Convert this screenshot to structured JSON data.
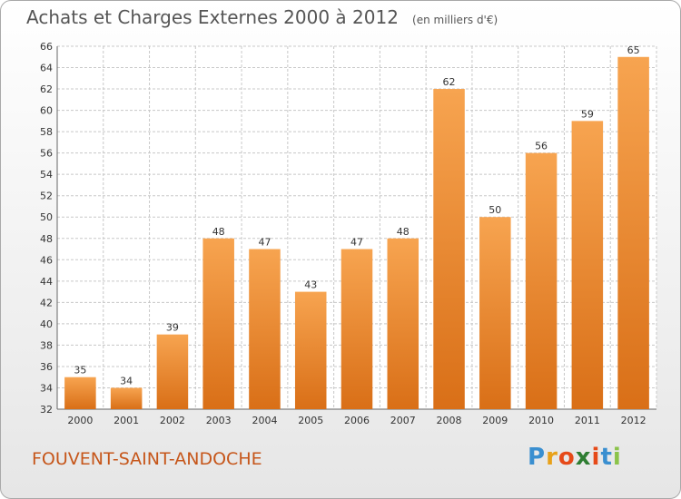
{
  "title": "Achats et Charges Externes 2000 à 2012",
  "unit": "(en milliers d'€)",
  "commune": "FOUVENT-SAINT-ANDOCHE",
  "logo": {
    "letters": [
      "P",
      "r",
      "o",
      "x",
      "i",
      "t",
      "i"
    ],
    "colors": [
      "#3a8fd0",
      "#e8a11a",
      "#e64a19",
      "#2e7d32",
      "#e64a19",
      "#3a8fd0",
      "#8bc34a"
    ]
  },
  "colors": {
    "bar_light": "#f7a450",
    "bar_dark": "#d96f17",
    "grid": "#c8c8c8",
    "commune": "#c6561a"
  },
  "chart_data": {
    "type": "bar",
    "categories": [
      "2000",
      "2001",
      "2002",
      "2003",
      "2004",
      "2005",
      "2006",
      "2007",
      "2008",
      "2009",
      "2010",
      "2011",
      "2012"
    ],
    "values": [
      35,
      34,
      39,
      48,
      47,
      43,
      47,
      48,
      62,
      50,
      56,
      59,
      65
    ],
    "ylim": [
      32,
      66
    ],
    "yticks": [
      32,
      34,
      36,
      38,
      40,
      42,
      44,
      46,
      48,
      50,
      52,
      54,
      56,
      58,
      60,
      62,
      64,
      66
    ],
    "grid": true,
    "data_labels": true
  }
}
